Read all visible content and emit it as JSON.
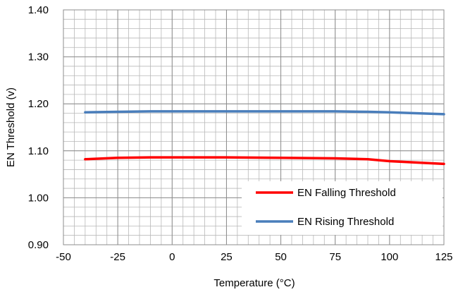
{
  "chart_data": {
    "type": "line",
    "title": "",
    "xlabel": "Temperature (°C)",
    "ylabel": "EN Threshold (v)",
    "xlim": [
      -50,
      125
    ],
    "ylim": [
      0.9,
      1.4
    ],
    "x_ticks": [
      -50,
      -25,
      0,
      25,
      50,
      75,
      100,
      125
    ],
    "x_tick_labels": [
      "-50",
      "-25",
      "0",
      "25",
      "50",
      "75",
      "100",
      "125"
    ],
    "y_ticks": [
      0.9,
      1.0,
      1.1,
      1.2,
      1.3,
      1.4
    ],
    "y_tick_labels": [
      "0.90",
      "1.00",
      "1.10",
      "1.20",
      "1.30",
      "1.40"
    ],
    "grid": true,
    "legend_position": "bottom-right",
    "series": [
      {
        "name": "EN Falling Threshold",
        "color": "#ff0000",
        "x": [
          -40,
          -25,
          -10,
          0,
          25,
          50,
          75,
          90,
          100,
          125
        ],
        "y": [
          1.082,
          1.085,
          1.086,
          1.086,
          1.086,
          1.085,
          1.084,
          1.082,
          1.078,
          1.072
        ]
      },
      {
        "name": "EN Rising Threshold",
        "color": "#4a7ebb",
        "x": [
          -40,
          -25,
          -10,
          0,
          25,
          50,
          75,
          90,
          100,
          125
        ],
        "y": [
          1.182,
          1.183,
          1.184,
          1.184,
          1.184,
          1.184,
          1.184,
          1.183,
          1.182,
          1.178
        ]
      }
    ]
  }
}
